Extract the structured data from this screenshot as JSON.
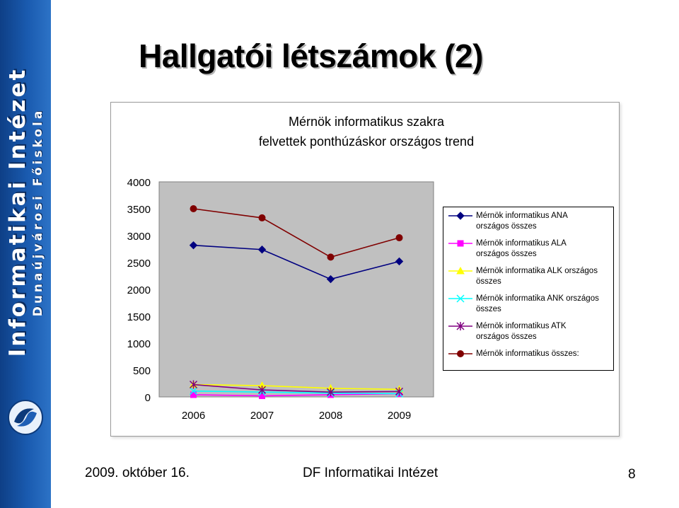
{
  "sidebar": {
    "title": "Informatikai Intézet",
    "subtitle": "Dunaújvárosi Főiskola"
  },
  "slide": {
    "title": "Hallgatói létszámok (2)"
  },
  "footer": {
    "date": "2009. október 16.",
    "org": "DF Informatikai Intézet",
    "page": "8"
  },
  "chart_data": {
    "type": "line",
    "title": "Mérnök informatikus szakra felvettek ponthúzáskor országos trend",
    "title_lines": [
      "Mérnök informatikus szakra",
      "felvettek ponthúzáskor országos trend"
    ],
    "categories": [
      "2006",
      "2007",
      "2008",
      "2009"
    ],
    "ylim": [
      0,
      4000
    ],
    "yticks": [
      0,
      500,
      1000,
      1500,
      2000,
      2500,
      3000,
      3500,
      4000
    ],
    "ytick_labels": [
      "0",
      "500",
      "1000",
      "1500",
      "2000",
      "2500",
      "3000",
      "3500",
      "4000"
    ],
    "plot_background": "#c0c0c0",
    "legend_position": "right",
    "series": [
      {
        "name": "Mérnök informatikus ANA országos összes",
        "label_lines": [
          "Mérnök informatikus ANA",
          "országos összes"
        ],
        "values": [
          2820,
          2740,
          2190,
          2520
        ],
        "color": "#000080",
        "marker": "diamond"
      },
      {
        "name": "Mérnök informatikus ALA országos összes",
        "label_lines": [
          "Mérnök informatikus ALA",
          "országos összes"
        ],
        "values": [
          40,
          20,
          40,
          60
        ],
        "color": "#ff00ff",
        "marker": "square"
      },
      {
        "name": "Mérnök informatika ALK országos összes",
        "label_lines": [
          "Mérnök informatika ALK országos",
          "összes"
        ],
        "values": [
          230,
          210,
          160,
          140
        ],
        "color": "#ffff00",
        "marker": "triangle"
      },
      {
        "name": "Mérnök informatika ANK országos összes",
        "label_lines": [
          "Mérnök informatika ANK országos",
          "összes"
        ],
        "values": [
          110,
          90,
          70,
          60
        ],
        "color": "#00ffff",
        "marker": "x"
      },
      {
        "name": "Mérnök informatikus ATK országos összes",
        "label_lines": [
          "Mérnök informatikus ATK",
          "országos összes"
        ],
        "values": [
          230,
          130,
          90,
          100
        ],
        "color": "#800080",
        "marker": "star"
      },
      {
        "name": "Mérnök informatikus összes:",
        "label_lines": [
          "Mérnök informatikus összes:"
        ],
        "values": [
          3500,
          3330,
          2600,
          2960
        ],
        "color": "#800000",
        "marker": "circle"
      }
    ]
  }
}
